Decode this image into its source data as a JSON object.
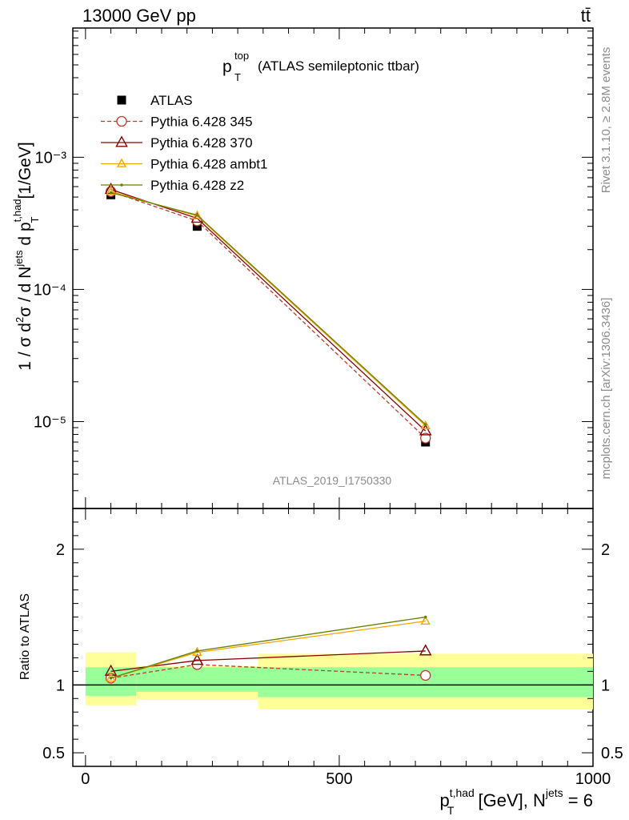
{
  "header": {
    "energy_label": "13000 GeV pp",
    "process_label": "tt̄"
  },
  "side_labels": {
    "rivet": "Rivet 3.1.10, ≥ 2.8M events",
    "mcplots": "mcplots.cern.ch [arXiv:1306.3436]"
  },
  "chart_data": [
    {
      "type": "line",
      "title_main": "p",
      "title_sub": "T",
      "title_sup": "top",
      "title_rest": "(ATLAS semileptonic ttbar)",
      "watermark": "ATLAS_2019_I1750330",
      "ylabel": "1 / σ d²σ / d N^jets d p_T^t,had [1/GeV]",
      "yscale": "log",
      "ylim": [
        2.2e-06,
        0.0095
      ],
      "xlim": [
        -25,
        1000
      ],
      "y_tick_labels": [
        "10⁻³",
        "10⁻⁴",
        "10⁻⁵"
      ],
      "x": [
        50,
        220,
        670
      ],
      "series": [
        {
          "name": "ATLAS",
          "color": "#000000",
          "marker": "square",
          "values": [
            0.00052,
            0.0003,
            7e-06
          ]
        },
        {
          "name": "Pythia 6.428 345",
          "color": "#c0392b",
          "marker": "circle",
          "dashed": true,
          "values": [
            0.00055,
            0.00033,
            7.5e-06
          ]
        },
        {
          "name": "Pythia 6.428 370",
          "color": "#8b0000",
          "marker": "triangle",
          "values": [
            0.00057,
            0.000345,
            8.5e-06
          ]
        },
        {
          "name": "Pythia 6.428 ambt1",
          "color": "#f0a500",
          "marker": "triangle",
          "values": [
            0.00055,
            0.00036,
            9.3e-06
          ]
        },
        {
          "name": "Pythia 6.428 z2",
          "color": "#6b7f00",
          "marker": "dot",
          "values": [
            0.00054,
            0.000365,
            9.5e-06
          ]
        }
      ]
    },
    {
      "type": "line",
      "ylabel": "Ratio to ATLAS",
      "xlabel": "p_T^t,had [GeV], N^jets = 6",
      "ylim": [
        0.4,
        2.3
      ],
      "xlim": [
        -25,
        1000
      ],
      "y_tick_labels": [
        "2",
        "1",
        "0.5"
      ],
      "x_tick_labels": [
        "0",
        "500",
        "1000"
      ],
      "bins": [
        [
          0,
          100
        ],
        [
          100,
          340
        ],
        [
          340,
          1000
        ]
      ],
      "band_inner": [
        [
          0.92,
          1.13
        ],
        [
          0.95,
          1.13
        ],
        [
          0.91,
          1.13
        ]
      ],
      "band_outer": [
        [
          0.85,
          1.24
        ],
        [
          0.89,
          1.14
        ],
        [
          0.82,
          1.23
        ]
      ],
      "x": [
        50,
        220,
        670
      ],
      "series": [
        {
          "name": "Pythia 6.428 345",
          "color": "#c0392b",
          "marker": "circle",
          "dashed": true,
          "values": [
            1.05,
            1.15,
            1.07
          ]
        },
        {
          "name": "Pythia 6.428 370",
          "color": "#8b0000",
          "marker": "triangle",
          "values": [
            1.1,
            1.18,
            1.25
          ]
        },
        {
          "name": "Pythia 6.428 ambt1",
          "color": "#f0a500",
          "marker": "triangle",
          "values": [
            1.05,
            1.24,
            1.47
          ]
        },
        {
          "name": "Pythia 6.428 z2",
          "color": "#6b7f00",
          "marker": "dot",
          "values": [
            1.05,
            1.25,
            1.5
          ]
        }
      ]
    }
  ]
}
